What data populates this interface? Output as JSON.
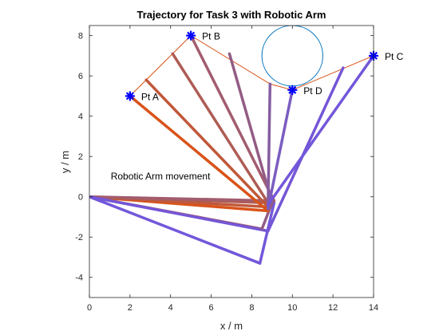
{
  "chart_data": {
    "type": "line",
    "title": "Trajectory for Task 3 with Robotic Arm",
    "xlabel": "x / m",
    "ylabel": "y / m",
    "xlim": [
      0,
      14
    ],
    "ylim": [
      -5,
      8.5
    ],
    "xticks": [
      "0",
      "2",
      "4",
      "6",
      "8",
      "10",
      "12",
      "14"
    ],
    "yticks": [
      "-4",
      "-2",
      "0",
      "2",
      "4",
      "6",
      "8"
    ],
    "grid": false,
    "annotation": "Robotic Arm movement",
    "points": [
      {
        "label": "Pt A",
        "x": 2,
        "y": 5
      },
      {
        "label": "Pt B",
        "x": 5,
        "y": 8
      },
      {
        "label": "Pt D",
        "x": 10,
        "y": 5.3
      },
      {
        "label": "Pt C",
        "x": 14,
        "y": 7
      }
    ],
    "obstacle": {
      "cx": 10,
      "cy": 7,
      "r": 1.5,
      "color": "#0072BD"
    },
    "path": {
      "color": "#D95319",
      "x": [
        2,
        5,
        8.9,
        10,
        14
      ],
      "y": [
        5,
        8,
        5.6,
        5.3,
        7
      ]
    },
    "arm_segments": [
      {
        "elbow": [
          8.8,
          -0.7
        ],
        "tip": [
          2,
          5
        ],
        "color": "#D95319"
      },
      {
        "elbow": [
          8.8,
          -0.5
        ],
        "tip": [
          2.8,
          5.8
        ],
        "color": "#C0583A"
      },
      {
        "elbow": [
          8.8,
          -0.3
        ],
        "tip": [
          4.1,
          7.1
        ],
        "color": "#AE5C55"
      },
      {
        "elbow": [
          9.1,
          -0.2
        ],
        "tip": [
          5,
          8
        ],
        "color": "#A25C6E"
      },
      {
        "elbow": [
          9.0,
          -0.3
        ],
        "tip": [
          6.9,
          7.1
        ],
        "color": "#935C84"
      },
      {
        "elbow": [
          8.8,
          -0.5
        ],
        "tip": [
          8.9,
          5.6
        ],
        "color": "#865DA0"
      },
      {
        "elbow": [
          8.8,
          -0.6
        ],
        "tip": [
          10,
          5.3
        ],
        "color": "#7B5DC0"
      },
      {
        "elbow": [
          8.8,
          -1.7
        ],
        "tip": [
          12.5,
          6.4
        ],
        "color": "#7456D6"
      },
      {
        "elbow": [
          8.8,
          -0.4
        ],
        "tip": [
          14,
          7
        ],
        "color": "#7357DA"
      }
    ],
    "upper_arms": [
      {
        "elbow": [
          8.8,
          -0.7
        ],
        "color": "#D95319"
      },
      {
        "elbow": [
          8.8,
          -0.5
        ],
        "color": "#C0583A"
      },
      {
        "elbow": [
          8.8,
          -0.3
        ],
        "color": "#AE5C55"
      },
      {
        "elbow": [
          9.1,
          -0.2
        ],
        "color": "#A25C6E"
      },
      {
        "elbow": [
          8.5,
          -1.6
        ],
        "color": "#A25C6E"
      },
      {
        "elbow": [
          8.8,
          -1.7
        ],
        "color": "#7456D6"
      },
      {
        "elbow": [
          8.4,
          -3.3
        ],
        "color": "#7357DA"
      }
    ],
    "extra_links": [
      {
        "from": [
          8.4,
          -3.3
        ],
        "to": [
          9.1,
          -0.3
        ],
        "color": "#7357DA"
      },
      {
        "from": [
          8.5,
          -1.6
        ],
        "to": [
          9.0,
          -0.3
        ],
        "color": "#935C84"
      }
    ],
    "marker_color": "#0000FF"
  }
}
